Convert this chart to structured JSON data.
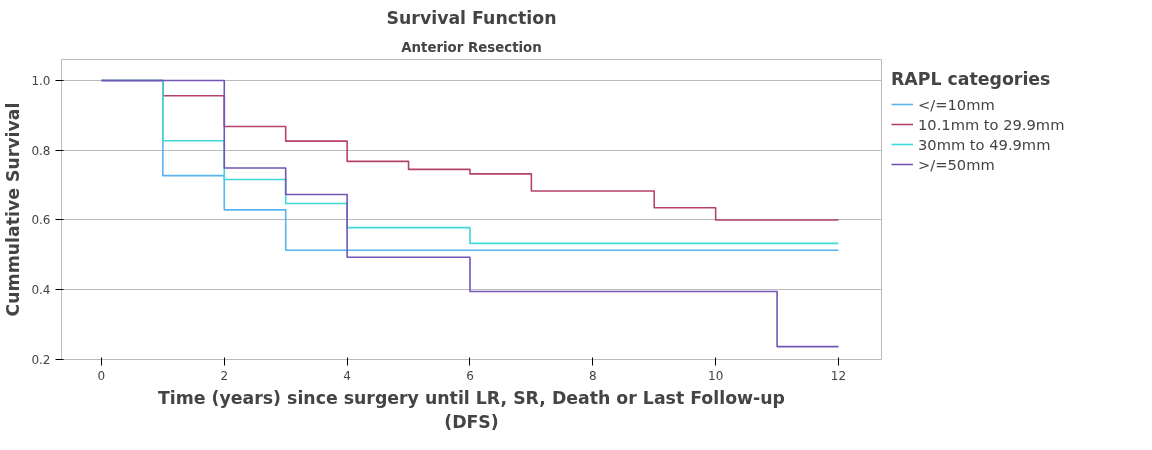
{
  "chart_data": {
    "type": "step",
    "title": "Survival Function",
    "subtitle": "Anterior Resection",
    "xlabel": "Time (years) since surgery until LR, SR, Death or Last Follow-up\n(DFS)",
    "ylabel": "Cummulative Survival",
    "legend_title": "RAPL categories",
    "legend": "top right",
    "grid": "y",
    "xlim": [
      -0.65,
      12.7
    ],
    "ylim": [
      0.2,
      1.06
    ],
    "xticks": [
      0,
      2,
      4,
      6,
      8,
      10,
      12
    ],
    "yticks": [
      {
        "value": 0.2,
        "label": "0.2"
      },
      {
        "value": 0.4,
        "label": "0.4"
      },
      {
        "value": 0.6,
        "label": "0.6"
      },
      {
        "value": 0.8,
        "label": "0.8"
      },
      {
        "value": 1,
        "label": "1.0"
      }
    ],
    "series": [
      {
        "name": "</=10mm",
        "color": "#5ab4f0",
        "x": [
          0,
          1,
          2,
          3,
          12
        ],
        "values": [
          1.0,
          0.727,
          0.629,
          0.513,
          0.513
        ]
      },
      {
        "name": "10.1mm to 29.9mm",
        "color": "#b5426a",
        "x": [
          0,
          1,
          2,
          3,
          4,
          5,
          6,
          7,
          9,
          10,
          12
        ],
        "values": [
          1.0,
          0.956,
          0.868,
          0.826,
          0.768,
          0.745,
          0.732,
          0.683,
          0.635,
          0.6,
          0.6
        ]
      },
      {
        "name": "30mm to 49.9mm",
        "color": "#40d8d8",
        "x": [
          0,
          1,
          2,
          3,
          4,
          6,
          12
        ],
        "values": [
          1.0,
          0.827,
          0.716,
          0.647,
          0.578,
          0.533,
          0.533
        ]
      },
      {
        "name": ">/=50mm",
        "color": "#7355b5",
        "x": [
          0,
          2,
          3,
          4,
          6,
          11,
          12
        ],
        "values": [
          1.0,
          0.749,
          0.673,
          0.493,
          0.395,
          0.237,
          0.237
        ]
      }
    ]
  }
}
